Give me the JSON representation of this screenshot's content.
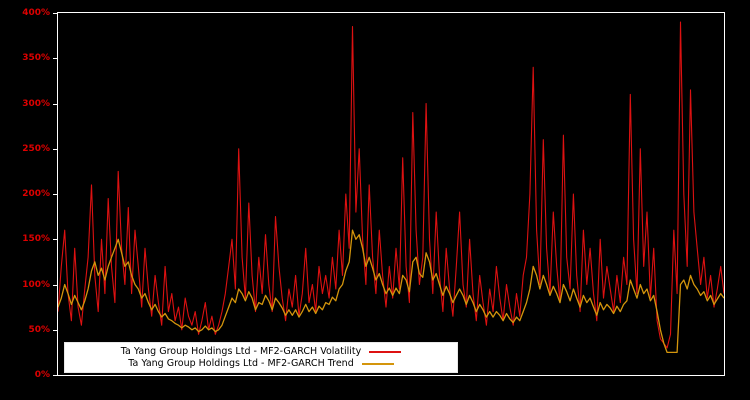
{
  "chart_data": {
    "type": "line",
    "title": "",
    "xlabel": "",
    "ylabel": "",
    "ylim": [
      0,
      400
    ],
    "y_ticks": [
      "0%",
      "50%",
      "100%",
      "150%",
      "200%",
      "250%",
      "300%",
      "350%",
      "400%"
    ],
    "grid": false,
    "legend_position": "bottom-left",
    "background_color": "#000000",
    "frame_color": "#ffffff",
    "axis_label_color": "#dd0000",
    "series": [
      {
        "name": "Ta Yang Group Holdings Ltd - MF2-GARCH Volatility",
        "color": "#dd1111",
        "data_name": "volatility-line",
        "values": [
          70,
          120,
          160,
          90,
          60,
          140,
          75,
          55,
          95,
          130,
          210,
          110,
          70,
          150,
          90,
          195,
          120,
          80,
          225,
          140,
          100,
          185,
          90,
          160,
          120,
          75,
          140,
          95,
          65,
          110,
          80,
          55,
          120,
          70,
          90,
          60,
          75,
          50,
          85,
          65,
          55,
          70,
          45,
          60,
          80,
          50,
          65,
          45,
          55,
          70,
          90,
          120,
          150,
          95,
          250,
          130,
          85,
          190,
          110,
          70,
          130,
          90,
          155,
          100,
          70,
          175,
          120,
          85,
          60,
          95,
          75,
          110,
          65,
          90,
          140,
          80,
          100,
          70,
          120,
          90,
          110,
          85,
          130,
          95,
          160,
          110,
          200,
          140,
          385,
          180,
          250,
          150,
          100,
          210,
          130,
          90,
          160,
          110,
          75,
          120,
          85,
          140,
          95,
          240,
          120,
          80,
          290,
          160,
          100,
          130,
          300,
          150,
          90,
          180,
          110,
          70,
          140,
          95,
          65,
          120,
          180,
          100,
          75,
          150,
          90,
          60,
          110,
          80,
          55,
          95,
          70,
          120,
          85,
          60,
          100,
          75,
          55,
          90,
          65,
          110,
          130,
          200,
          340,
          160,
          100,
          260,
          140,
          90,
          180,
          120,
          80,
          265,
          130,
          95,
          200,
          110,
          70,
          160,
          100,
          140,
          90,
          60,
          150,
          85,
          120,
          95,
          70,
          110,
          80,
          130,
          100,
          310,
          150,
          90,
          250,
          120,
          180,
          85,
          140,
          60,
          40,
          35,
          30,
          45,
          160,
          90,
          390,
          200,
          120,
          315,
          180,
          140,
          100,
          130,
          85,
          110,
          75,
          95,
          120,
          90
        ]
      },
      {
        "name": "Ta Yang Group Holdings Ltd - MF2-GARCH Trend",
        "color": "#d4950c",
        "data_name": "trend-line",
        "values": [
          75,
          85,
          100,
          90,
          78,
          88,
          80,
          72,
          82,
          95,
          115,
          125,
          110,
          118,
          105,
          120,
          130,
          140,
          150,
          135,
          120,
          125,
          110,
          100,
          95,
          85,
          90,
          80,
          72,
          78,
          70,
          64,
          68,
          62,
          60,
          57,
          55,
          52,
          55,
          53,
          50,
          52,
          48,
          50,
          54,
          50,
          52,
          48,
          50,
          55,
          65,
          75,
          85,
          80,
          95,
          90,
          82,
          92,
          85,
          72,
          80,
          78,
          88,
          82,
          72,
          85,
          80,
          74,
          66,
          72,
          66,
          72,
          64,
          70,
          78,
          70,
          75,
          68,
          76,
          72,
          80,
          78,
          86,
          82,
          95,
          100,
          115,
          125,
          160,
          150,
          155,
          140,
          120,
          130,
          118,
          105,
          112,
          100,
          90,
          96,
          88,
          96,
          90,
          110,
          105,
          92,
          125,
          130,
          112,
          108,
          135,
          125,
          105,
          112,
          100,
          88,
          98,
          90,
          80,
          88,
          95,
          88,
          78,
          88,
          80,
          70,
          78,
          72,
          64,
          70,
          64,
          70,
          66,
          60,
          68,
          62,
          58,
          64,
          60,
          70,
          80,
          95,
          120,
          110,
          95,
          110,
          100,
          88,
          98,
          90,
          80,
          100,
          92,
          82,
          95,
          85,
          75,
          88,
          80,
          85,
          75,
          66,
          80,
          72,
          78,
          74,
          68,
          76,
          70,
          78,
          82,
          105,
          95,
          85,
          100,
          90,
          95,
          82,
          88,
          70,
          50,
          35,
          25,
          25,
          25,
          25,
          100,
          105,
          95,
          110,
          100,
          95,
          88,
          92,
          82,
          88,
          78,
          84,
          90,
          85
        ]
      }
    ]
  }
}
